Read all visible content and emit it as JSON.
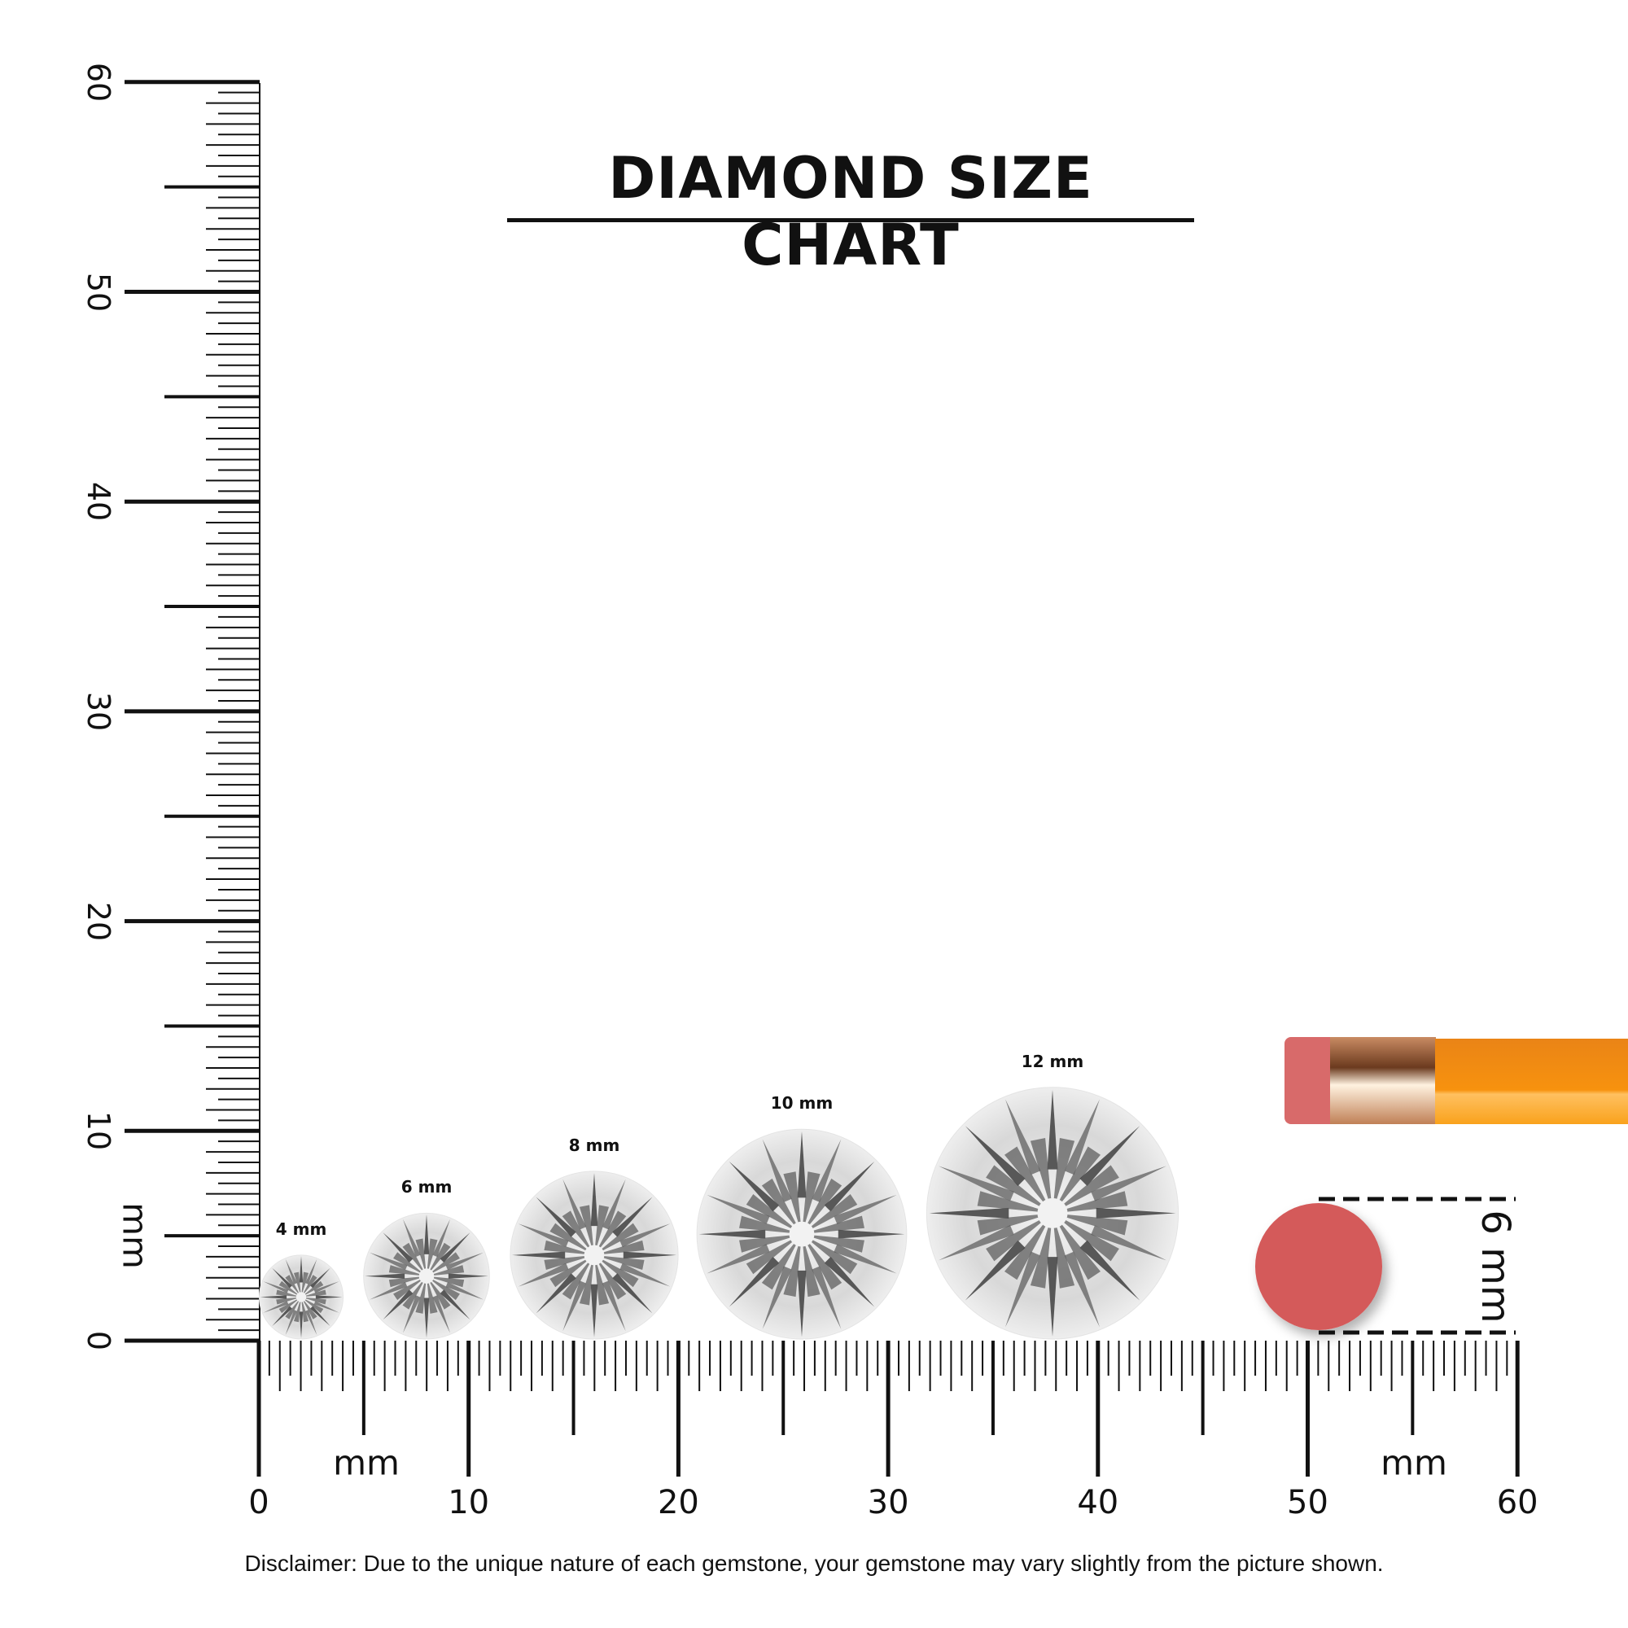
{
  "title": "DIAMOND SIZE CHART",
  "disclaimer": "Disclaimer: Due to the unique nature of each gemstone, your gemstone may vary slightly from the picture shown.",
  "ruler": {
    "unit_label": "mm",
    "range_mm": [
      0,
      60
    ],
    "horizontal_labels": [
      "0",
      "10",
      "20",
      "30",
      "40",
      "50",
      "60"
    ],
    "vertical_labels": [
      "0",
      "10",
      "20",
      "30",
      "40",
      "50",
      "60"
    ]
  },
  "diamonds": [
    {
      "label": "4 mm",
      "size_mm": 4
    },
    {
      "label": "6 mm",
      "size_mm": 6
    },
    {
      "label": "8 mm",
      "size_mm": 8
    },
    {
      "label": "10 mm",
      "size_mm": 10
    },
    {
      "label": "12 mm",
      "size_mm": 12
    }
  ],
  "eraser_reference": {
    "label": "6 mm",
    "size_mm": 6,
    "color": "#d45a5a"
  },
  "colors": {
    "pencil_body": "#f7920e",
    "pencil_ferrule": "#d9a27a",
    "eraser": "#d45a5a",
    "ink": "#111111"
  },
  "icons": [
    "pencil-icon",
    "eraser-icon",
    "diamond-icon"
  ]
}
